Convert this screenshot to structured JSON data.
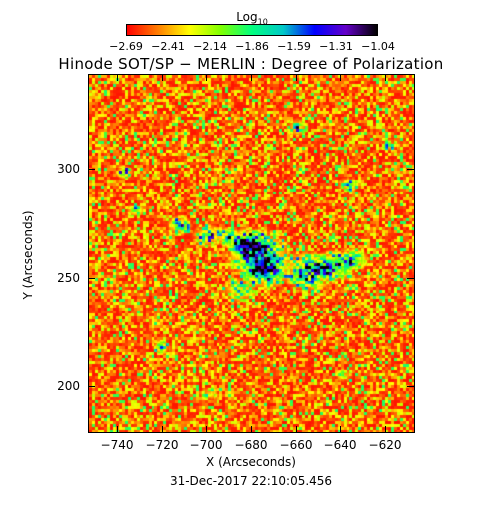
{
  "colorbar": {
    "label_base": "Log",
    "label_sub": "10",
    "ticks": [
      "−2.69",
      "−2.41",
      "−2.14",
      "−1.86",
      "−1.59",
      "−1.31",
      "−1.04"
    ],
    "stops": [
      "#ff0000",
      "#ff7f00",
      "#ffff00",
      "#7fff00",
      "#00ff7f",
      "#00c8c8",
      "#0000ff",
      "#6400c8",
      "#000000"
    ]
  },
  "title": "Hinode SOT/SP − MERLIN : Degree of Polarization",
  "x_axis": {
    "label": "X (Arcseconds)",
    "ticks": [
      "−740",
      "−720",
      "−700",
      "−680",
      "−660",
      "−640",
      "−620"
    ]
  },
  "y_axis": {
    "label": "Y (Arcseconds)",
    "ticks": [
      "300",
      "250",
      "200"
    ]
  },
  "timestamp": "31-Dec-2017 22:10:05.456"
}
